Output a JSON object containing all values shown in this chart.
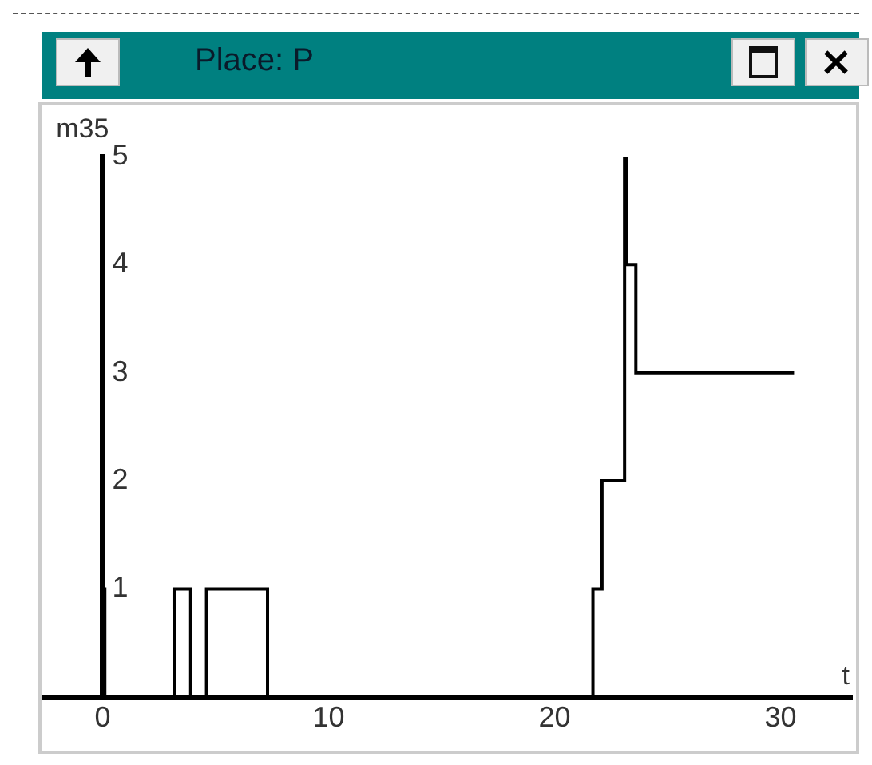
{
  "chart_data": {
    "type": "step",
    "title": "Place: P",
    "xlabel": "t",
    "ylabel": "m35",
    "x": [
      0,
      0,
      0.1,
      3.2,
      3.9,
      4.6,
      7.3,
      21.7,
      22.1,
      23.1,
      23.2,
      23.6,
      30.6
    ],
    "series": [
      {
        "color": "#000000",
        "values": [
          0,
          1,
          0,
          1,
          0,
          1,
          0,
          1,
          2,
          5,
          4,
          3,
          3
        ]
      }
    ],
    "xlim": [
      -2.7,
      33.2
    ],
    "ylim": [
      0,
      5
    ],
    "xticks": [
      0,
      10,
      20,
      30
    ],
    "yticks": [
      1,
      2,
      3,
      4,
      5
    ]
  }
}
